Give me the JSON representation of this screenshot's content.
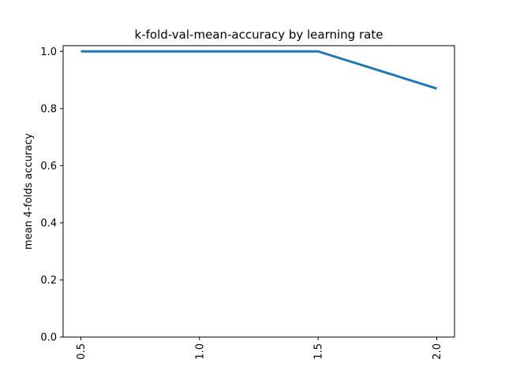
{
  "chart_data": {
    "type": "line",
    "title": "k-fold-val-mean-accuracy by learning rate",
    "xlabel": "",
    "ylabel": "mean 4-folds accuracy",
    "x": [
      0.5,
      1.0,
      1.5,
      2.0
    ],
    "x_tick_labels": [
      "0.5",
      "1.0",
      "1.5",
      "2.0"
    ],
    "series": [
      {
        "values": [
          1.0,
          1.0,
          1.0,
          0.87
        ],
        "color": "#1f77b4"
      }
    ],
    "ylim": [
      0.0,
      1.02
    ],
    "y_ticks": [
      0.0,
      0.2,
      0.4,
      0.6,
      0.8,
      1.0
    ],
    "y_tick_labels": [
      "0.0",
      "0.2",
      "0.4",
      "0.6",
      "0.8",
      "1.0"
    ],
    "x_tick_rotation": "vertical",
    "grid": false,
    "legend": "none"
  }
}
